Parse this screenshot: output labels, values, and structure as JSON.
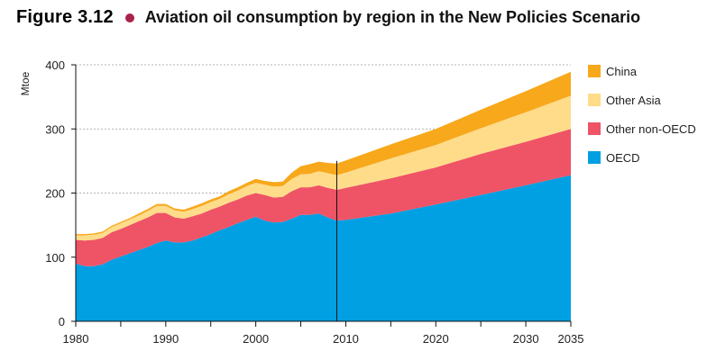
{
  "figure": {
    "number": "Figure 3.12",
    "title": "Aviation oil consumption by region in the New Policies Scenario",
    "dot_color": "#a8234a"
  },
  "chart_data": {
    "type": "area",
    "stacked": true,
    "title": "Aviation oil consumption by region in the New Policies Scenario",
    "xlabel": "",
    "ylabel": "Mtoe",
    "xlim": [
      1980,
      2035
    ],
    "ylim": [
      0,
      400
    ],
    "yticks": [
      0,
      100,
      200,
      300,
      400
    ],
    "xticks": [
      1980,
      1990,
      2000,
      2010,
      2020,
      2030,
      2035
    ],
    "grid": "horizontal dashed",
    "legend_position": "right",
    "divider_year": 2009,
    "x": [
      1980,
      1981,
      1982,
      1983,
      1984,
      1985,
      1986,
      1987,
      1988,
      1989,
      1990,
      1991,
      1992,
      1993,
      1994,
      1995,
      1996,
      1997,
      1998,
      1999,
      2000,
      2001,
      2002,
      2003,
      2004,
      2005,
      2006,
      2007,
      2008,
      2009,
      2010,
      2015,
      2020,
      2025,
      2030,
      2035
    ],
    "series": [
      {
        "name": "OECD",
        "color": "#00a0e3",
        "values": [
          90,
          86,
          86,
          89,
          96,
          101,
          106,
          111,
          116,
          122,
          126,
          123,
          123,
          126,
          131,
          136,
          142,
          147,
          153,
          158,
          163,
          157,
          154,
          155,
          160,
          166,
          166,
          168,
          162,
          157,
          158,
          168,
          182,
          197,
          212,
          228
        ]
      },
      {
        "name": "Other non-OECD",
        "color": "#ef5366",
        "values": [
          37,
          40,
          41,
          41,
          43,
          43,
          44,
          45,
          46,
          47,
          43,
          39,
          37,
          38,
          37,
          38,
          37,
          38,
          37,
          38,
          37,
          40,
          39,
          39,
          43,
          43,
          43,
          44,
          46,
          48,
          50,
          55,
          58,
          64,
          68,
          72
        ]
      },
      {
        "name": "Other Asia",
        "color": "#ffdc8a",
        "values": [
          7,
          8,
          8,
          8,
          8,
          9,
          9,
          9,
          10,
          11,
          11,
          11,
          11,
          11,
          12,
          12,
          12,
          13,
          14,
          15,
          16,
          16,
          17,
          17,
          19,
          20,
          21,
          22,
          23,
          23,
          24,
          31,
          35,
          40,
          46,
          52
        ]
      },
      {
        "name": "China",
        "color": "#f7a81b",
        "values": [
          2,
          2,
          2,
          2,
          2,
          2,
          2,
          3,
          3,
          3,
          3,
          3,
          3,
          4,
          4,
          4,
          4,
          5,
          5,
          5,
          6,
          6,
          7,
          7,
          10,
          13,
          15,
          15,
          16,
          18,
          19,
          22,
          25,
          29,
          33,
          37
        ]
      }
    ],
    "legend_order": [
      "China",
      "Other Asia",
      "Other non-OECD",
      "OECD"
    ]
  }
}
